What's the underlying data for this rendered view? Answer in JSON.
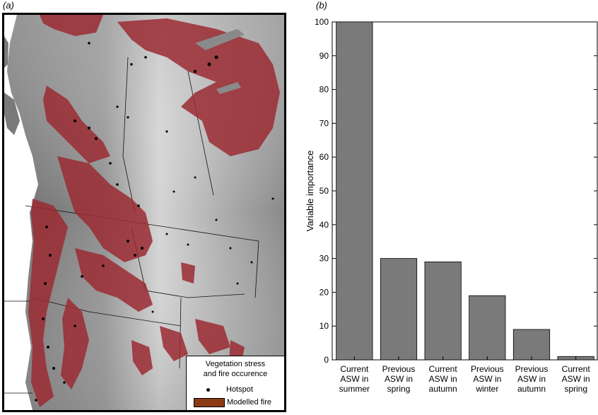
{
  "panel_a": {
    "label": "(a)",
    "legend": {
      "title_line1": "Vegetation stress",
      "title_line2": "and fire occurence",
      "hotspot_label": "Hotspot",
      "fire_label": "Modelled fire",
      "fire_color": "#8b3a14"
    },
    "colors": {
      "fire_overlay": "#9b2a32",
      "hotspot": "#000000",
      "water": "#ffffff"
    }
  },
  "panel_b": {
    "label": "(b)"
  },
  "chart_data": {
    "type": "bar",
    "ylabel": "Variable importance",
    "xlabel": "",
    "ylim": [
      0,
      100
    ],
    "yticks": [
      0,
      10,
      20,
      30,
      40,
      50,
      60,
      70,
      80,
      90,
      100
    ],
    "categories": [
      [
        "Current",
        "ASW in",
        "summer"
      ],
      [
        "Previous",
        "ASW in",
        "spring"
      ],
      [
        "Current",
        "ASW in",
        "autumn"
      ],
      [
        "Previous",
        "ASW in",
        "winter"
      ],
      [
        "Previous",
        "ASW in",
        "autumn"
      ],
      [
        "Current",
        "ASW in",
        "spring"
      ]
    ],
    "values": [
      100,
      30,
      29,
      19,
      9,
      1
    ],
    "bar_color": "#7a7a7a",
    "grid": false
  }
}
